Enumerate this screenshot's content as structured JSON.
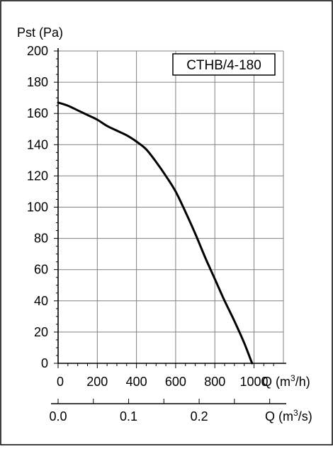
{
  "colors": {
    "background": "#ffffff",
    "grid": "#808080",
    "curve": "#000000",
    "border": "#000000"
  },
  "chart_data": {
    "type": "line",
    "legend_label": "CTHB/4-180",
    "legend_placement": "top-right",
    "grid": true,
    "ylabel": "Pst (Pa)",
    "xlabel_parts": {
      "base": "Q (m",
      "sup": "3",
      "tail": "/h)"
    },
    "x2label_parts": {
      "base": "Q (m",
      "sup": "3",
      "tail": "/s)"
    },
    "xlim": [
      0,
      1150
    ],
    "ylim": [
      0,
      200
    ],
    "x_ticks": [
      "0",
      "200",
      "400",
      "600",
      "800",
      "1000"
    ],
    "x_tick_values": [
      0,
      200,
      400,
      600,
      800,
      1000
    ],
    "y_ticks": [
      "0",
      "20",
      "40",
      "60",
      "80",
      "100",
      "120",
      "140",
      "160",
      "180",
      "200"
    ],
    "y_tick_values": [
      0,
      20,
      40,
      60,
      80,
      100,
      120,
      140,
      160,
      180,
      200
    ],
    "x2_ticks": [
      "0.0",
      "0.1",
      "0.2"
    ],
    "x2_tick_values": [
      0,
      0.1,
      0.2
    ],
    "series": [
      {
        "x": [
          0,
          50,
          100,
          150,
          200,
          250,
          300,
          350,
          400,
          450,
          500,
          550,
          600,
          650,
          700,
          750,
          800,
          850,
          900,
          950,
          990
        ],
        "y": [
          167,
          165,
          162,
          159,
          156,
          152,
          149,
          146,
          142,
          137,
          129,
          120,
          110,
          97,
          83,
          68,
          54,
          40,
          27,
          13,
          0
        ]
      }
    ]
  }
}
